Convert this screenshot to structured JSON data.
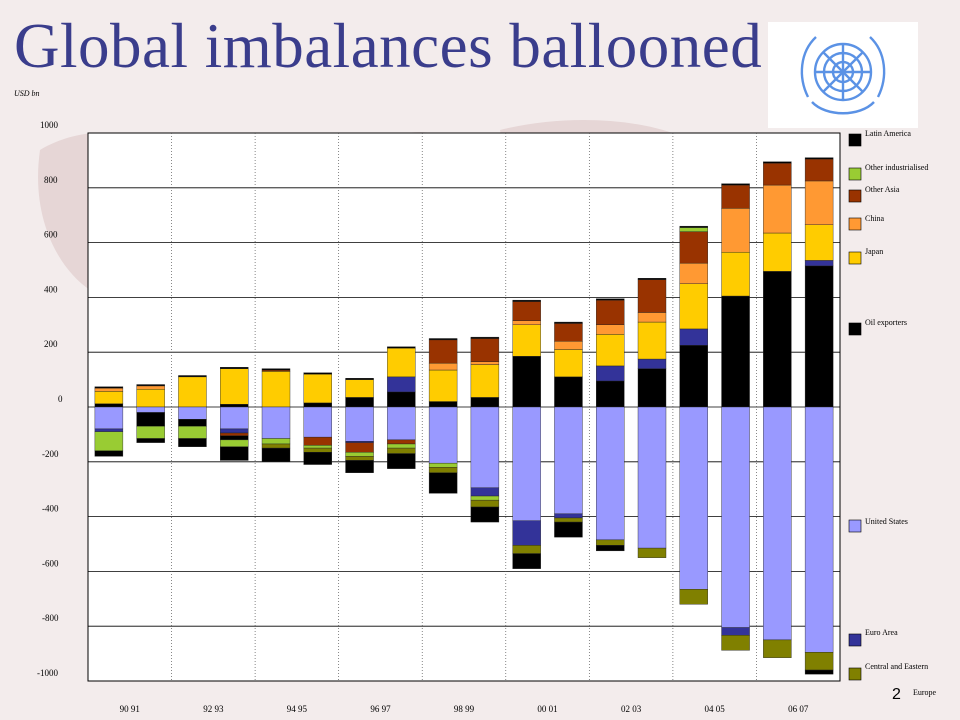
{
  "slide": {
    "title": "Global imbalances ballooned",
    "number": "2",
    "unit": "USD bn"
  },
  "colors": {
    "latin_america": "#000000",
    "other_industrialised": "#99cc33",
    "other_asia": "#993300",
    "china": "#ff9933",
    "japan": "#ffcc00",
    "oil_exporters": "#000000",
    "united_states": "#9999ff",
    "euro_area": "#333399",
    "central_eastern_europe": "#808000",
    "title": "#3a3d8c"
  },
  "chart_data": {
    "type": "bar",
    "stacked": true,
    "ylim": [
      -1000,
      1000
    ],
    "yticks": [
      1000,
      800,
      600,
      400,
      200,
      0,
      -200,
      -400,
      -600,
      -800,
      -1000
    ],
    "x_tick_labels": [
      "90 91",
      "92 93",
      "94 95",
      "96 97",
      "98 99",
      "00 01",
      "02 03",
      "04 05",
      "06 07"
    ],
    "categories": [
      "1990",
      "1991",
      "1992",
      "1993",
      "1994",
      "1995",
      "1996",
      "1997",
      "1998",
      "1999",
      "2000",
      "2001",
      "2002",
      "2003",
      "2004",
      "2005",
      "2006",
      "2007"
    ],
    "grid": true,
    "legend_position": "right",
    "legend": [
      {
        "key": "latin_america",
        "label": "Latin America"
      },
      {
        "key": "other_industrialised",
        "label": "Other industrialised"
      },
      {
        "key": "other_asia",
        "label": "Other Asia"
      },
      {
        "key": "china",
        "label": "China"
      },
      {
        "key": "japan",
        "label": "Japan"
      },
      {
        "key": "oil_exporters",
        "label": "Oil exporters"
      },
      {
        "key": "united_states",
        "label": "United States"
      },
      {
        "key": "euro_area",
        "label": "Euro Area"
      },
      {
        "key": "central_eastern_europe",
        "label": "Central and Eastern Europe"
      }
    ],
    "positive_series": [
      {
        "key": "oil_exporters",
        "values": [
          12,
          0,
          0,
          10,
          0,
          15,
          35,
          55,
          20,
          35,
          185,
          110,
          95,
          140,
          225,
          405,
          495,
          515
        ]
      },
      {
        "key": "euro_area",
        "values": [
          0,
          0,
          0,
          0,
          0,
          0,
          0,
          55,
          0,
          0,
          0,
          0,
          55,
          35,
          60,
          0,
          0,
          20
        ]
      },
      {
        "key": "japan",
        "values": [
          45,
          65,
          110,
          130,
          130,
          105,
          65,
          105,
          115,
          120,
          115,
          100,
          115,
          135,
          165,
          160,
          140,
          130
        ]
      },
      {
        "key": "china",
        "values": [
          12,
          12,
          0,
          0,
          0,
          0,
          0,
          0,
          25,
          10,
          15,
          30,
          35,
          35,
          75,
          160,
          175,
          160
        ]
      },
      {
        "key": "other_asia",
        "values": [
          0,
          0,
          0,
          0,
          5,
          0,
          0,
          0,
          85,
          85,
          70,
          65,
          90,
          120,
          115,
          85,
          80,
          80
        ]
      },
      {
        "key": "other_industrialised",
        "values": [
          0,
          0,
          0,
          0,
          0,
          0,
          0,
          0,
          0,
          0,
          0,
          0,
          0,
          0,
          15,
          0,
          0,
          0
        ]
      },
      {
        "key": "latin_america",
        "values": [
          5,
          5,
          5,
          5,
          5,
          5,
          5,
          5,
          5,
          5,
          5,
          5,
          5,
          5,
          5,
          5,
          5,
          5
        ]
      }
    ],
    "negative_series": [
      {
        "key": "united_states",
        "values": [
          -80,
          -20,
          -45,
          -80,
          -115,
          -110,
          -125,
          -120,
          -205,
          -295,
          -415,
          -390,
          -485,
          -515,
          -665,
          -805,
          -850,
          -895
        ]
      },
      {
        "key": "euro_area",
        "values": [
          -10,
          0,
          0,
          -15,
          0,
          0,
          -5,
          0,
          0,
          -30,
          -90,
          -15,
          0,
          0,
          0,
          -28,
          0,
          0
        ]
      },
      {
        "key": "other_asia",
        "values": [
          0,
          0,
          0,
          -10,
          0,
          -30,
          -35,
          -15,
          0,
          0,
          0,
          0,
          0,
          0,
          0,
          0,
          0,
          0
        ]
      },
      {
        "key": "latin_america",
        "values": [
          0,
          -50,
          -25,
          -15,
          0,
          0,
          0,
          0,
          0,
          0,
          0,
          0,
          0,
          0,
          0,
          0,
          0,
          0
        ]
      },
      {
        "key": "other_industrialised",
        "values": [
          -70,
          -45,
          -45,
          -25,
          -20,
          -10,
          -15,
          -15,
          -15,
          -15,
          0,
          0,
          0,
          0,
          0,
          0,
          0,
          0
        ]
      },
      {
        "key": "central_eastern_europe",
        "values": [
          0,
          0,
          0,
          0,
          -15,
          -15,
          -15,
          -20,
          -20,
          -25,
          -30,
          -15,
          -20,
          -35,
          -55,
          -55,
          -65,
          -65
        ]
      },
      {
        "key": "oil_exporters",
        "values": [
          -20,
          -15,
          -30,
          -50,
          -50,
          -45,
          -45,
          -55,
          -75,
          -55,
          -55,
          -55,
          -20,
          0,
          0,
          0,
          0,
          -15
        ]
      }
    ]
  }
}
